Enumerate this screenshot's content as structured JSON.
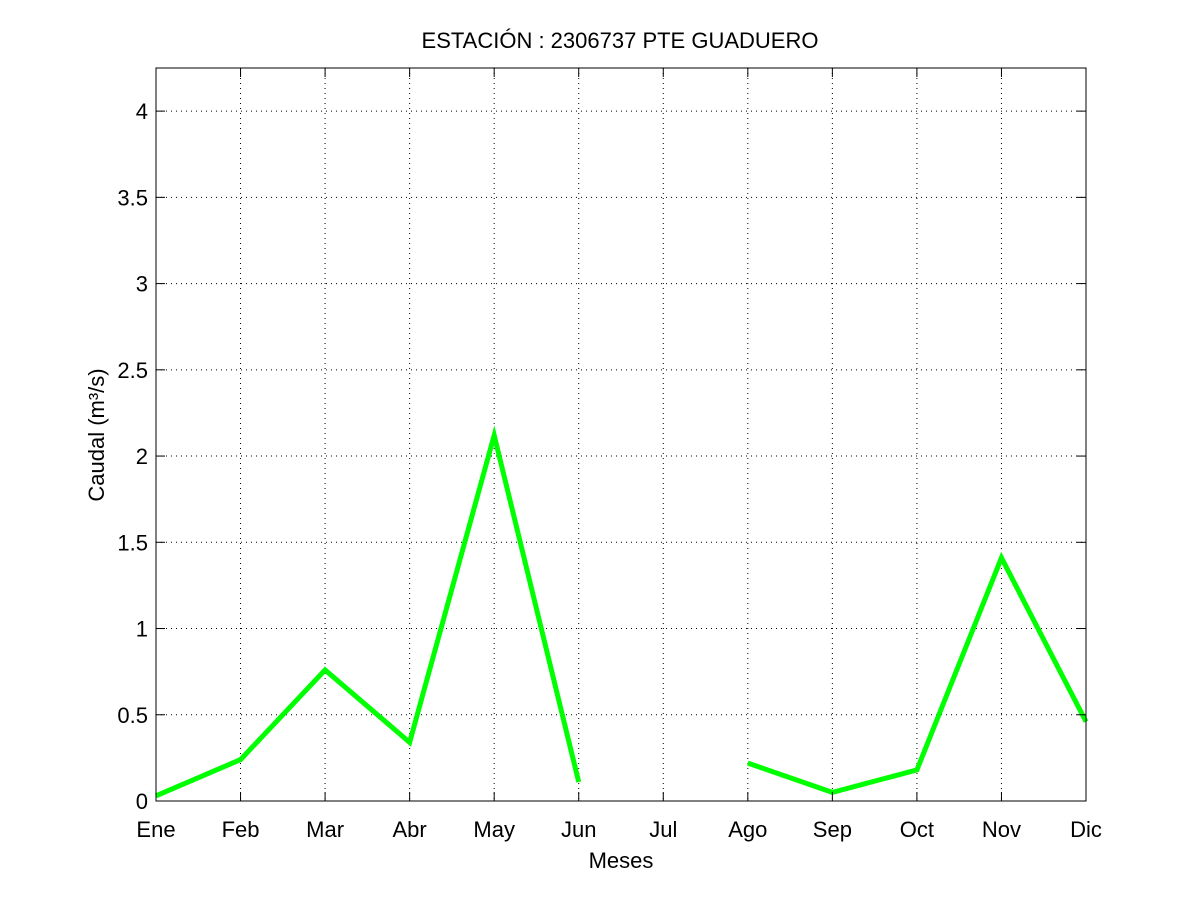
{
  "chart_data": {
    "type": "line",
    "title": "ESTACIÓN :  2306737  PTE GUADUERO",
    "xlabel": "Meses",
    "ylabel": "Caudal (m³/s)",
    "categories": [
      "Ene",
      "Feb",
      "Mar",
      "Abr",
      "May",
      "Jun",
      "Jul",
      "Ago",
      "Sep",
      "Oct",
      "Nov",
      "Dic"
    ],
    "yticks": [
      "0",
      "0.5",
      "1",
      "1.5",
      "2",
      "2.5",
      "3",
      "3.5",
      "4"
    ],
    "ylim": [
      0,
      4.25
    ],
    "grid": true,
    "series": [
      {
        "values": [
          0.03,
          0.24,
          0.76,
          0.34,
          2.12,
          0.11,
          null,
          0.22,
          0.05,
          0.18,
          1.41,
          0.46
        ],
        "color": "#00ff00"
      }
    ]
  }
}
